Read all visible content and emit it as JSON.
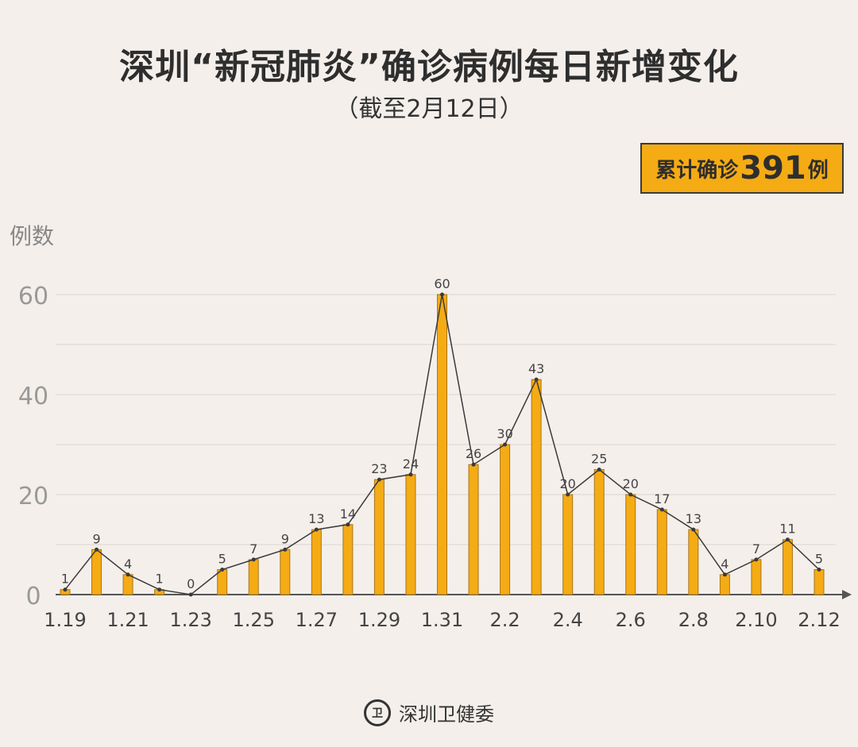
{
  "title": "深圳“新冠肺炎”确诊病例每日新增变化",
  "subtitle": "（截至2月12日）",
  "total": {
    "prefix": "累计确诊",
    "value": "391",
    "suffix": "例"
  },
  "footer": {
    "org": "深圳卫健委"
  },
  "colors": {
    "bar": "#f5ab14",
    "line": "#3a3a3a",
    "background": "#f4efeb"
  },
  "chart_data": {
    "type": "bar",
    "overlay": "line",
    "ylabel": "例数",
    "xlabel": "",
    "ylim": [
      0,
      60
    ],
    "yticks": [
      0,
      20,
      40,
      60
    ],
    "grid": true,
    "categories": [
      "1.19",
      "1.20",
      "1.21",
      "1.22",
      "1.23",
      "1.24",
      "1.25",
      "1.26",
      "1.27",
      "1.28",
      "1.29",
      "1.30",
      "1.31",
      "2.1",
      "2.2",
      "2.3",
      "2.4",
      "2.5",
      "2.6",
      "2.7",
      "2.8",
      "2.9",
      "2.10",
      "2.11",
      "2.12"
    ],
    "xtick_labels": [
      "1.19",
      "1.21",
      "1.23",
      "1.25",
      "1.27",
      "1.29",
      "1.31",
      "2.2",
      "2.4",
      "2.6",
      "2.8",
      "2.10",
      "2.12"
    ],
    "values": [
      1,
      9,
      4,
      1,
      0,
      5,
      7,
      9,
      13,
      14,
      23,
      24,
      60,
      26,
      30,
      43,
      20,
      25,
      20,
      17,
      13,
      4,
      7,
      11,
      5
    ]
  }
}
